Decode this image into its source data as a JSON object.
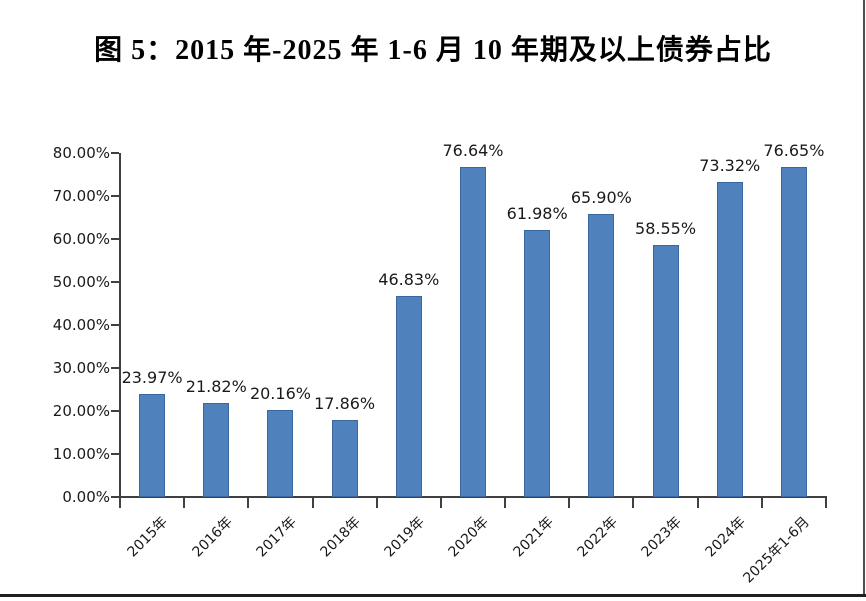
{
  "figure_title": "图 5：2015 年-2025 年 1-6 月 10 年期及以上债券占比",
  "chart_data": {
    "type": "bar",
    "title": "图 5：2015 年-2025 年 1-6 月 10 年期及以上债券占比",
    "categories": [
      "2015年",
      "2016年",
      "2017年",
      "2018年",
      "2019年",
      "2020年",
      "2021年",
      "2022年",
      "2023年",
      "2024年",
      "2025年1-6月"
    ],
    "values": [
      23.97,
      21.82,
      20.16,
      17.86,
      46.83,
      76.64,
      61.98,
      65.9,
      58.55,
      73.32,
      76.65
    ],
    "data_labels": [
      "23.97%",
      "21.82%",
      "20.16%",
      "17.86%",
      "46.83%",
      "76.64%",
      "61.98%",
      "65.90%",
      "58.55%",
      "73.32%",
      "76.65%"
    ],
    "y_tick_labels": [
      "0.00%",
      "10.00%",
      "20.00%",
      "30.00%",
      "40.00%",
      "50.00%",
      "60.00%",
      "70.00%",
      "80.00%"
    ],
    "xlabel": "",
    "ylabel": "",
    "ylim": [
      0,
      80
    ],
    "grid": false,
    "legend": false,
    "bar_color": "#4f81bd",
    "bar_border_color": "#3a679f",
    "axis_color": "#404040",
    "text_color": "#1a1a1a"
  }
}
